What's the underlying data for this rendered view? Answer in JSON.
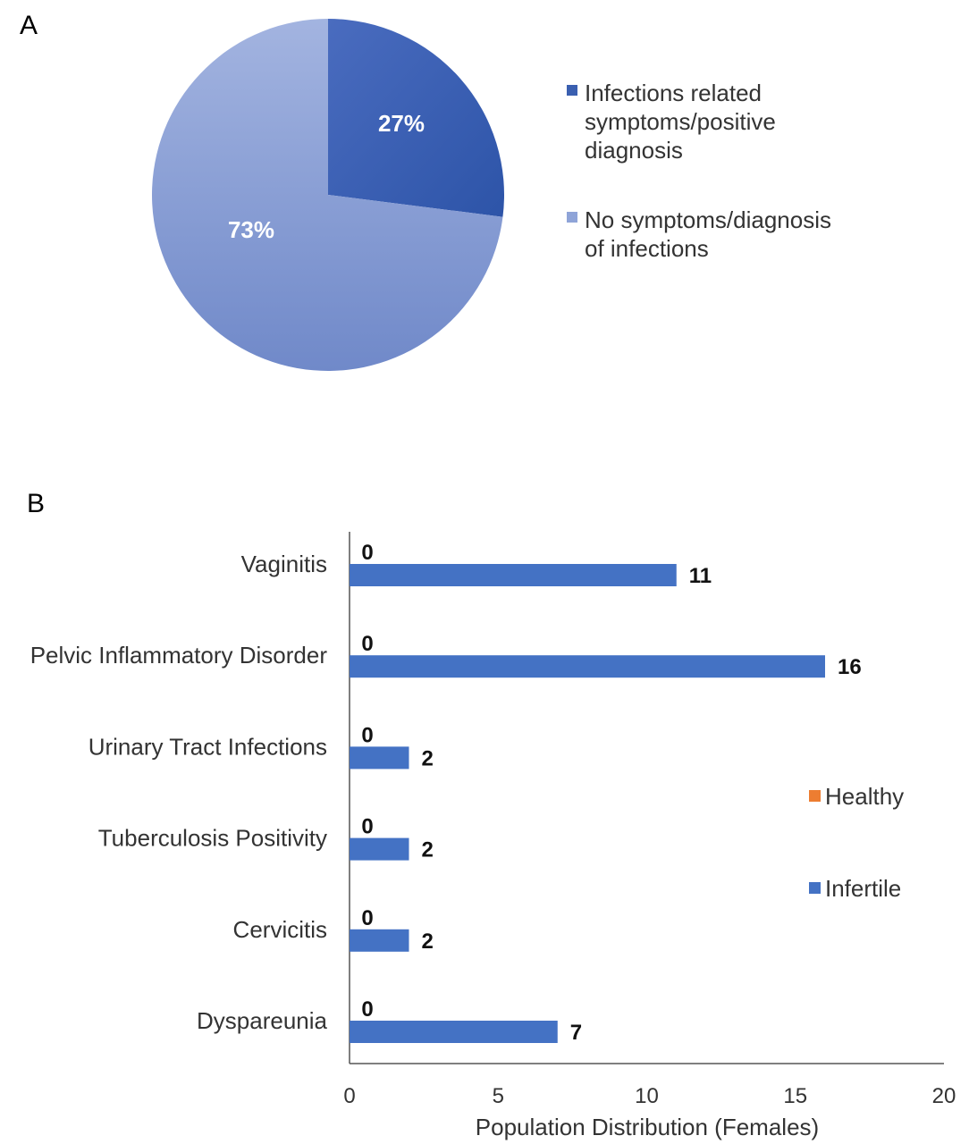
{
  "panel_a_label": "A",
  "panel_b_label": "B",
  "chart_data": [
    {
      "type": "pie",
      "slices": [
        {
          "label": "Infections related symptoms/positive diagnosis",
          "legend_lines": [
            "Infections related",
            "symptoms/positive",
            "diagnosis"
          ],
          "value": 27,
          "display": "27%",
          "color": "#3a5fb0"
        },
        {
          "label": "No symptoms/diagnosis of infections",
          "legend_lines": [
            "No symptoms/diagnosis",
            "of infections"
          ],
          "value": 73,
          "display": "73%",
          "color": "#8fa4d8"
        }
      ],
      "legend_position": "right"
    },
    {
      "type": "bar",
      "orientation": "horizontal",
      "categories": [
        "Vaginitis",
        "Pelvic Inflammatory Disorder",
        "Urinary Tract Infections",
        "Tuberculosis Positivity",
        "Cervicitis",
        "Dyspareunia"
      ],
      "series": [
        {
          "name": "Healthy",
          "color": "#ed7d31",
          "values": [
            0,
            0,
            0,
            0,
            0,
            0
          ]
        },
        {
          "name": "Infertile",
          "color": "#4472c4",
          "values": [
            11,
            16,
            2,
            2,
            2,
            7
          ]
        }
      ],
      "xlabel": "Population Distribution (Females)",
      "xlim": [
        0,
        20
      ],
      "xticks": [
        0,
        5,
        10,
        15,
        20
      ],
      "grid": false,
      "legend_position": "right"
    }
  ]
}
